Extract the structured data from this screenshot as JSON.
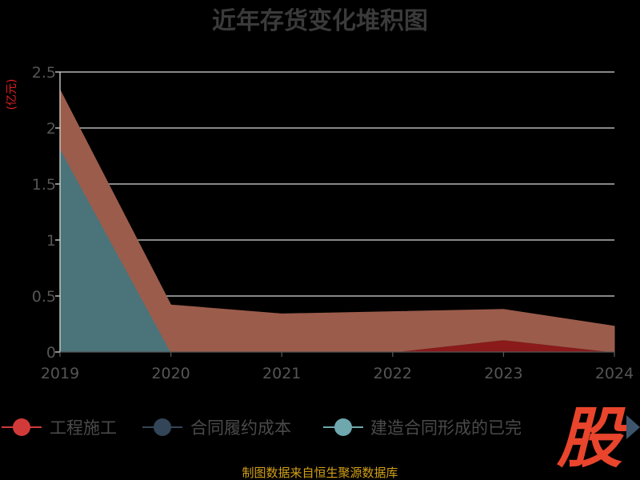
{
  "chart_data": {
    "type": "area",
    "stacked": true,
    "title": "近年存货变化堆积图",
    "ylabel": "(亿元)",
    "xlabel": "",
    "categories": [
      "2019",
      "2020",
      "2021",
      "2022",
      "2023",
      "2024"
    ],
    "ylim": [
      0,
      2.5
    ],
    "yticks": [
      0,
      0.5,
      1,
      1.5,
      2,
      2.5
    ],
    "ytick_labels": [
      "0",
      "0.5",
      "1",
      "1.5",
      "2",
      "2.5"
    ],
    "grid": true,
    "legend_position": "bottom",
    "series": [
      {
        "name": "工程施工",
        "values": [
          0,
          0,
          0,
          0,
          0.11,
          0
        ],
        "color": "#8b1a1a"
      },
      {
        "name": "合同履约成本",
        "values": [
          0,
          0,
          0,
          0,
          0,
          0
        ],
        "color": "#2e4053"
      },
      {
        "name": "建造合同形成的已完",
        "values": [
          1.82,
          0,
          0,
          0,
          0,
          0
        ],
        "color": "#4a747a"
      },
      {
        "name": "",
        "values": [
          0.52,
          0.42,
          0.34,
          0.36,
          0.27,
          0.23
        ],
        "color": "#9c5c4b"
      }
    ]
  },
  "legend_colors": [
    "#d23a3a",
    "#334558",
    "#6ea8ae"
  ],
  "colors": {
    "title": "#3a3a3a",
    "unit": "#e02020",
    "tick": "#555555",
    "legend_text": "#4a4a4a",
    "grid": "#d8d8d8",
    "axis": "#d8d8d8",
    "footer": "#d4a017",
    "logo": "#e8452c",
    "arrow": "#3d566e"
  },
  "footer": "制图数据来自恒生聚源数据库",
  "logo_text": "股",
  "icons": {
    "legend_next": "triangle-right-icon"
  }
}
